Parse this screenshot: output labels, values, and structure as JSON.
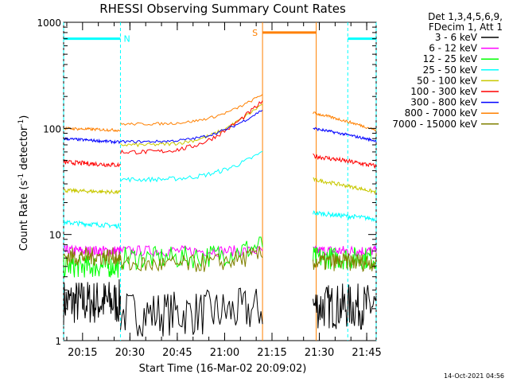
{
  "chart_data": {
    "type": "line",
    "title": "RHESSI Observing Summary Count Rates",
    "xlabel": "Start Time (16-Mar-02 20:09:02)",
    "ylabel_parts": [
      "Count Rate (s",
      "-1",
      " detector",
      "-1",
      ")"
    ],
    "yscale": "log",
    "ylim": [
      1,
      1000
    ],
    "xlim_minutes": [
      20.15,
      21.8
    ],
    "y_ticks": [
      {
        "v": 1,
        "label": "1"
      },
      {
        "v": 10,
        "label": "10"
      },
      {
        "v": 100,
        "label": "100"
      },
      {
        "v": 1000,
        "label": "1000"
      }
    ],
    "x_ticks": [
      {
        "v": "20:15",
        "label": "20:15"
      },
      {
        "v": "20:30",
        "label": "20:30"
      },
      {
        "v": "20:45",
        "label": "20:45"
      },
      {
        "v": "21:00",
        "label": "21:00"
      },
      {
        "v": "21:15",
        "label": "21:15"
      },
      {
        "v": "21:30",
        "label": "21:30"
      },
      {
        "v": "21:45",
        "label": "21:45"
      }
    ],
    "legend_header": [
      "Det 1,3,4,5,6,9,",
      "FDecim 1, Att 1"
    ],
    "legend_position": "right",
    "series": [
      {
        "name": "3 - 6 keV",
        "color": "#000000"
      },
      {
        "name": "6 - 12 keV",
        "color": "#ff00ff"
      },
      {
        "name": "12 - 25 keV",
        "color": "#00ff00"
      },
      {
        "name": "25 - 50 keV",
        "color": "#00ffff"
      },
      {
        "name": "50 - 100 keV",
        "color": "#c8c800"
      },
      {
        "name": "100 - 300 keV",
        "color": "#ff0000"
      },
      {
        "name": "300 - 800 keV",
        "color": "#0000ff"
      },
      {
        "name": "800 - 7000 keV",
        "color": "#ff8000"
      },
      {
        "name": "7000 - 15000 keV",
        "color": "#808000"
      }
    ],
    "flags": [
      {
        "label": "N",
        "color": "#00ffff",
        "start": "20:09",
        "end": "20:27",
        "level": 700
      },
      {
        "label": "S",
        "color": "#ff8000",
        "start": "21:12",
        "end": "21:29",
        "level": 800
      },
      {
        "label": "",
        "color": "#00ffff",
        "start": "21:39",
        "end": "21:48",
        "level": 700
      }
    ],
    "footer": "14-Oct-2021 04:56"
  }
}
